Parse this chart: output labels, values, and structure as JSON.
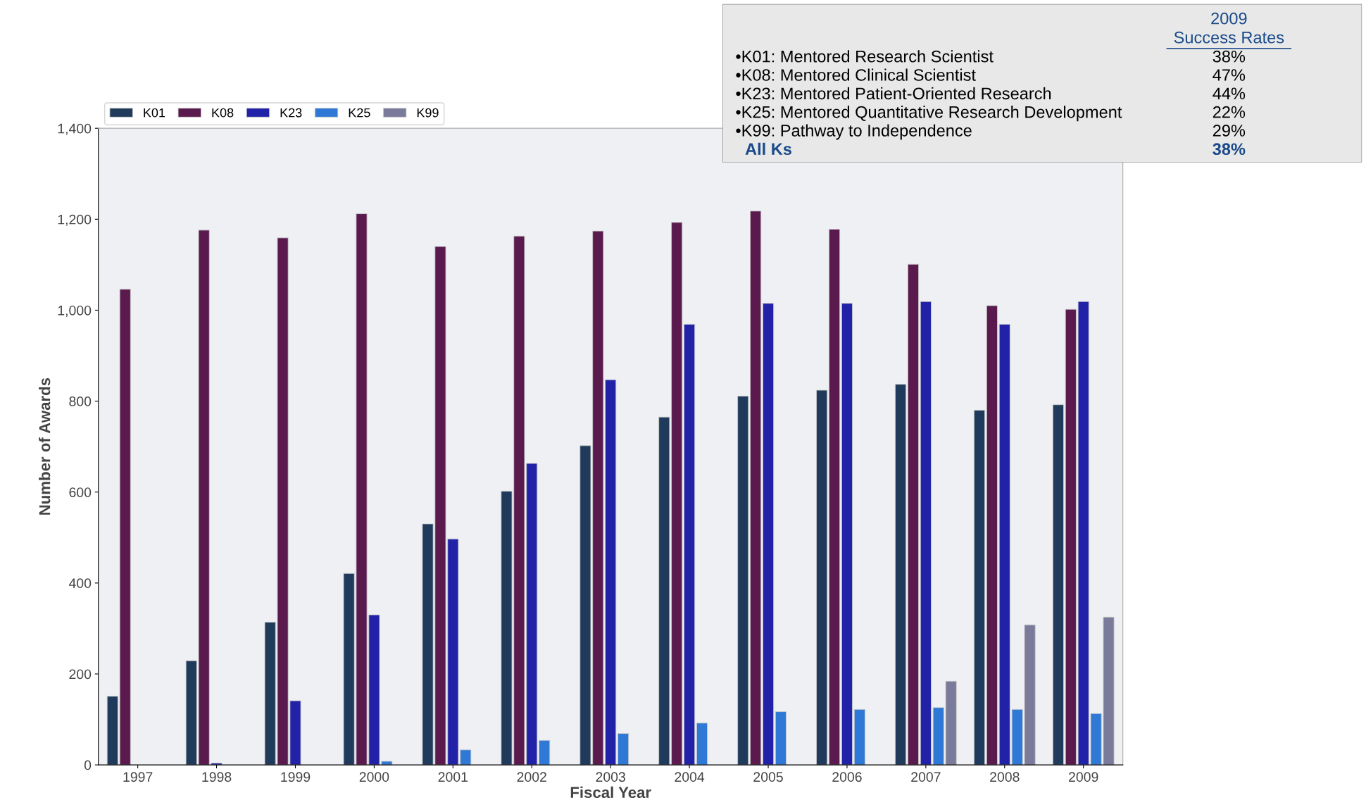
{
  "chart_data": {
    "type": "bar",
    "xlabel": "Fiscal Year",
    "ylabel": "Number of Awards",
    "categories": [
      "1997",
      "1998",
      "1999",
      "2000",
      "2001",
      "2002",
      "2003",
      "2004",
      "2005",
      "2006",
      "2007",
      "2008",
      "2009"
    ],
    "series": [
      {
        "name": "K01",
        "color": "#1f3a5a",
        "values": [
          151,
          229,
          314,
          421,
          530,
          602,
          702,
          765,
          811,
          824,
          837,
          780,
          792
        ]
      },
      {
        "name": "K08",
        "color": "#5a1a4e",
        "values": [
          1046,
          1176,
          1159,
          1212,
          1140,
          1163,
          1174,
          1193,
          1218,
          1178,
          1101,
          1010,
          1002
        ]
      },
      {
        "name": "K23",
        "color": "#2222a8",
        "values": [
          null,
          4,
          141,
          330,
          497,
          663,
          847,
          969,
          1015,
          1015,
          1019,
          969,
          1019
        ]
      },
      {
        "name": "K25",
        "color": "#2f78d6",
        "values": [
          null,
          null,
          null,
          8,
          33,
          54,
          69,
          92,
          117,
          122,
          126,
          122,
          113
        ]
      },
      {
        "name": "K99",
        "color": "#7a7a9a",
        "values": [
          null,
          null,
          null,
          null,
          null,
          null,
          null,
          null,
          null,
          null,
          184,
          308,
          325
        ]
      }
    ],
    "ylim": [
      0,
      1400
    ],
    "yticks": [
      0,
      {
        "value": 200,
        "label": "200"
      },
      {
        "value": 400,
        "label": "400"
      },
      {
        "value": 600,
        "label": "600"
      },
      {
        "value": 800,
        "label": "800"
      },
      {
        "value": 1000,
        "label": "1,000"
      },
      {
        "value": 1200,
        "label": "1,200"
      },
      {
        "value": 1400,
        "label": "1,400"
      }
    ],
    "grid": false,
    "legend": "top left",
    "annotations": [
      "2009",
      "Success Rates",
      "•K01: Mentored Research Scientist",
      "38%",
      "•K08: Mentored Clinical Scientist",
      "47%",
      "•K23: Mentored Patient-Oriented Research",
      "44%",
      "•K25: Mentored Quantitative Research Development",
      "22%",
      "•K99: Pathway to Independence",
      "29%",
      "All Ks",
      "38%"
    ]
  }
}
